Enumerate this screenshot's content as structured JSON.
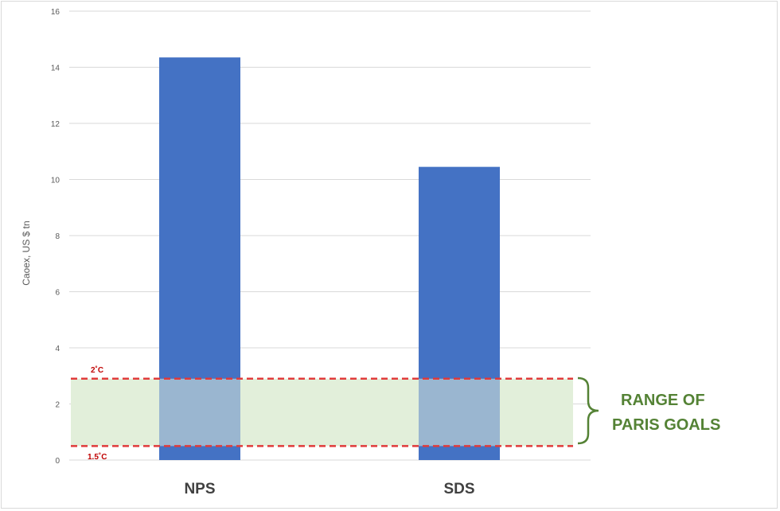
{
  "chart_data": {
    "type": "bar",
    "categories": [
      "NPS",
      "SDS"
    ],
    "values": [
      14.35,
      10.45
    ],
    "ylabel": "Caoex, US $ tn",
    "ylim": [
      0,
      16
    ],
    "yticks": [
      "0",
      "2",
      "4",
      "6",
      "8",
      "10",
      "12",
      "14",
      "16"
    ],
    "grid": true,
    "bar_color": "#4472c4",
    "band": {
      "lower": 0.5,
      "upper": 2.9,
      "fill": "#e2efda",
      "line_color": "#e03b3b"
    },
    "annotations": {
      "upper_line_label": "2˚C",
      "lower_line_label": "1.5˚C",
      "range_label_line1": "RANGE OF",
      "range_label_line2": "PARIS GOALS",
      "range_color": "#548235"
    }
  }
}
